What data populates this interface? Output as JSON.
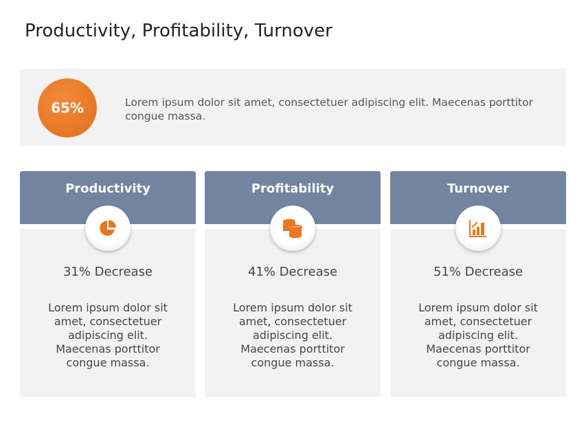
{
  "title": "Productivity, Profitability, Turnover",
  "summary": {
    "percent": "65%",
    "text": "Lorem ipsum dolor sit amet, consectetuer adipiscing elit. Maecenas porttitor congue massa."
  },
  "colors": {
    "accent": "#e87722",
    "header": "#7384a0",
    "panel": "#f2f2f2"
  },
  "cards": [
    {
      "title": "Productivity",
      "icon": "pie-chart-icon",
      "stat": "31% Decrease",
      "text": "Lorem ipsum dolor sit amet, consectetuer adipiscing elit. Maecenas porttitor congue massa."
    },
    {
      "title": "Profitability",
      "icon": "coins-icon",
      "stat": "41% Decrease",
      "text": "Lorem ipsum dolor sit amet, consectetuer adipiscing elit. Maecenas porttitor congue massa."
    },
    {
      "title": "Turnover",
      "icon": "bar-chart-growth-icon",
      "stat": "51% Decrease",
      "text": "Lorem ipsum dolor sit amet, consectetuer adipiscing elit. Maecenas porttitor congue massa."
    }
  ]
}
